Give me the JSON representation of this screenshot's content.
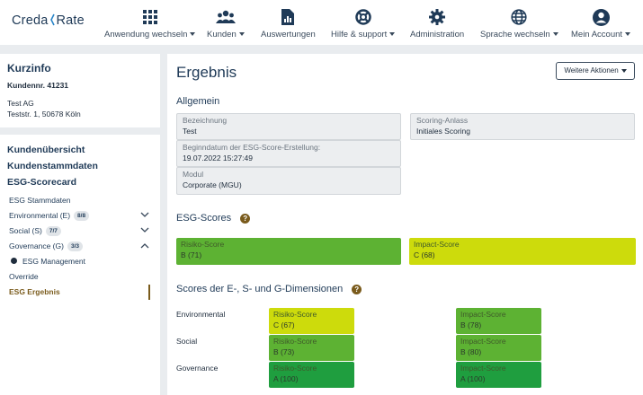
{
  "brand": {
    "part1": "Creda",
    "part2": "Rate"
  },
  "nav": [
    {
      "label": "Anwendung wechseln",
      "icon": "grid-icon",
      "caret": true
    },
    {
      "label": "Kunden",
      "icon": "users-icon",
      "caret": true
    },
    {
      "label": "Auswertungen",
      "icon": "report-icon",
      "caret": false
    },
    {
      "label": "Hilfe & support",
      "icon": "lifebuoy-icon",
      "caret": true
    },
    {
      "label": "Administration",
      "icon": "gear-icon",
      "caret": false
    },
    {
      "label": "Sprache wechseln",
      "icon": "globe-icon",
      "caret": true
    },
    {
      "label": "Mein Account",
      "icon": "user-circle-icon",
      "caret": true
    }
  ],
  "kurzinfo": {
    "title": "Kurzinfo",
    "kundennr": "Kundennr. 41231",
    "name": "Test AG",
    "address": "Teststr. 1, 50678 Köln"
  },
  "sidebar": {
    "kundenuebersicht": "Kundenübersicht",
    "kundenstammdaten": "Kundenstammdaten",
    "esg_scorecard": "ESG-Scorecard",
    "esg_stammdaten": "ESG Stammdaten",
    "environmental": {
      "label": "Environmental (E)",
      "badge": "8/8"
    },
    "social": {
      "label": "Social (S)",
      "badge": "7/7"
    },
    "governance": {
      "label": "Governance (G)",
      "badge": "3/3"
    },
    "esg_management": "ESG Management",
    "override": "Override",
    "esg_ergebnis": "ESG Ergebnis"
  },
  "main": {
    "title": "Ergebnis",
    "actions_button": "Weitere Aktionen",
    "allgemein": "Allgemein",
    "fields": {
      "bezeichnung": {
        "label": "Bezeichnung",
        "value": "Test"
      },
      "scoring_anlass": {
        "label": "Scoring-Anlass",
        "value": "Initiales Scoring"
      },
      "beginndatum": {
        "label": "Beginndatum der ESG-Score-Erstellung:",
        "value": "19.07.2022 15:27:49"
      },
      "modul": {
        "label": "Modul",
        "value": "Corporate (MGU)"
      }
    },
    "esg_scores_title": "ESG-Scores",
    "risiko": {
      "label": "Risiko-Score",
      "value": "B (71)"
    },
    "impact": {
      "label": "Impact-Score",
      "value": "C (68)"
    },
    "dims_title": "Scores der E-, S- und G-Dimensionen",
    "dims": [
      {
        "name": "Environmental",
        "risk_label": "Risiko-Score",
        "risk": "C (67)",
        "impact_label": "Impact-Score",
        "impact": "B (78)"
      },
      {
        "name": "Social",
        "risk_label": "Risiko-Score",
        "risk": "B (73)",
        "impact_label": "Impact-Score",
        "impact": "B (80)"
      },
      {
        "name": "Governance",
        "risk_label": "Risiko-Score",
        "risk": "A (100)",
        "impact_label": "Impact-Score",
        "impact": "A (100)"
      }
    ],
    "help_glyph": "?"
  },
  "colors": {
    "grade_a": "#1f9e3f",
    "grade_b": "#5db233",
    "grade_c": "#cddb0c",
    "accent": "#7a5b1c"
  }
}
